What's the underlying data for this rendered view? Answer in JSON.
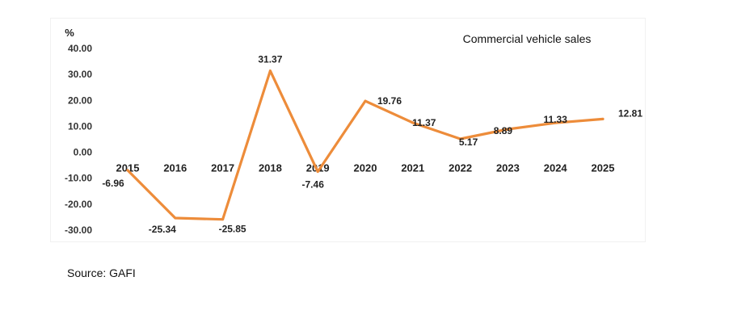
{
  "chart_data": {
    "type": "line",
    "title": "Commercial vehicle sales",
    "ylabel": "%",
    "xlabel": "",
    "categories": [
      "2015",
      "2016",
      "2017",
      "2018",
      "2019",
      "2020",
      "2021",
      "2022",
      "2023",
      "2024",
      "2025"
    ],
    "series": [
      {
        "values": [
          -6.96,
          -25.34,
          -25.85,
          31.37,
          -7.46,
          19.76,
          11.37,
          5.17,
          8.89,
          11.33,
          12.81
        ],
        "labels": [
          "-6.96",
          "-25.34",
          "-25.85",
          "31.37",
          "-7.46",
          "19.76",
          "11.37",
          "5.17",
          "8.89",
          "11.33",
          "12.81"
        ],
        "color": "#ED8C3A"
      }
    ],
    "yticks": [
      "40.00",
      "30.00",
      "20.00",
      "10.00",
      "0.00",
      "-10.00",
      "-20.00",
      "-30.00"
    ],
    "ylim": [
      -30,
      40
    ],
    "grid": false,
    "legend": "none"
  },
  "source": "Source: GAFI"
}
